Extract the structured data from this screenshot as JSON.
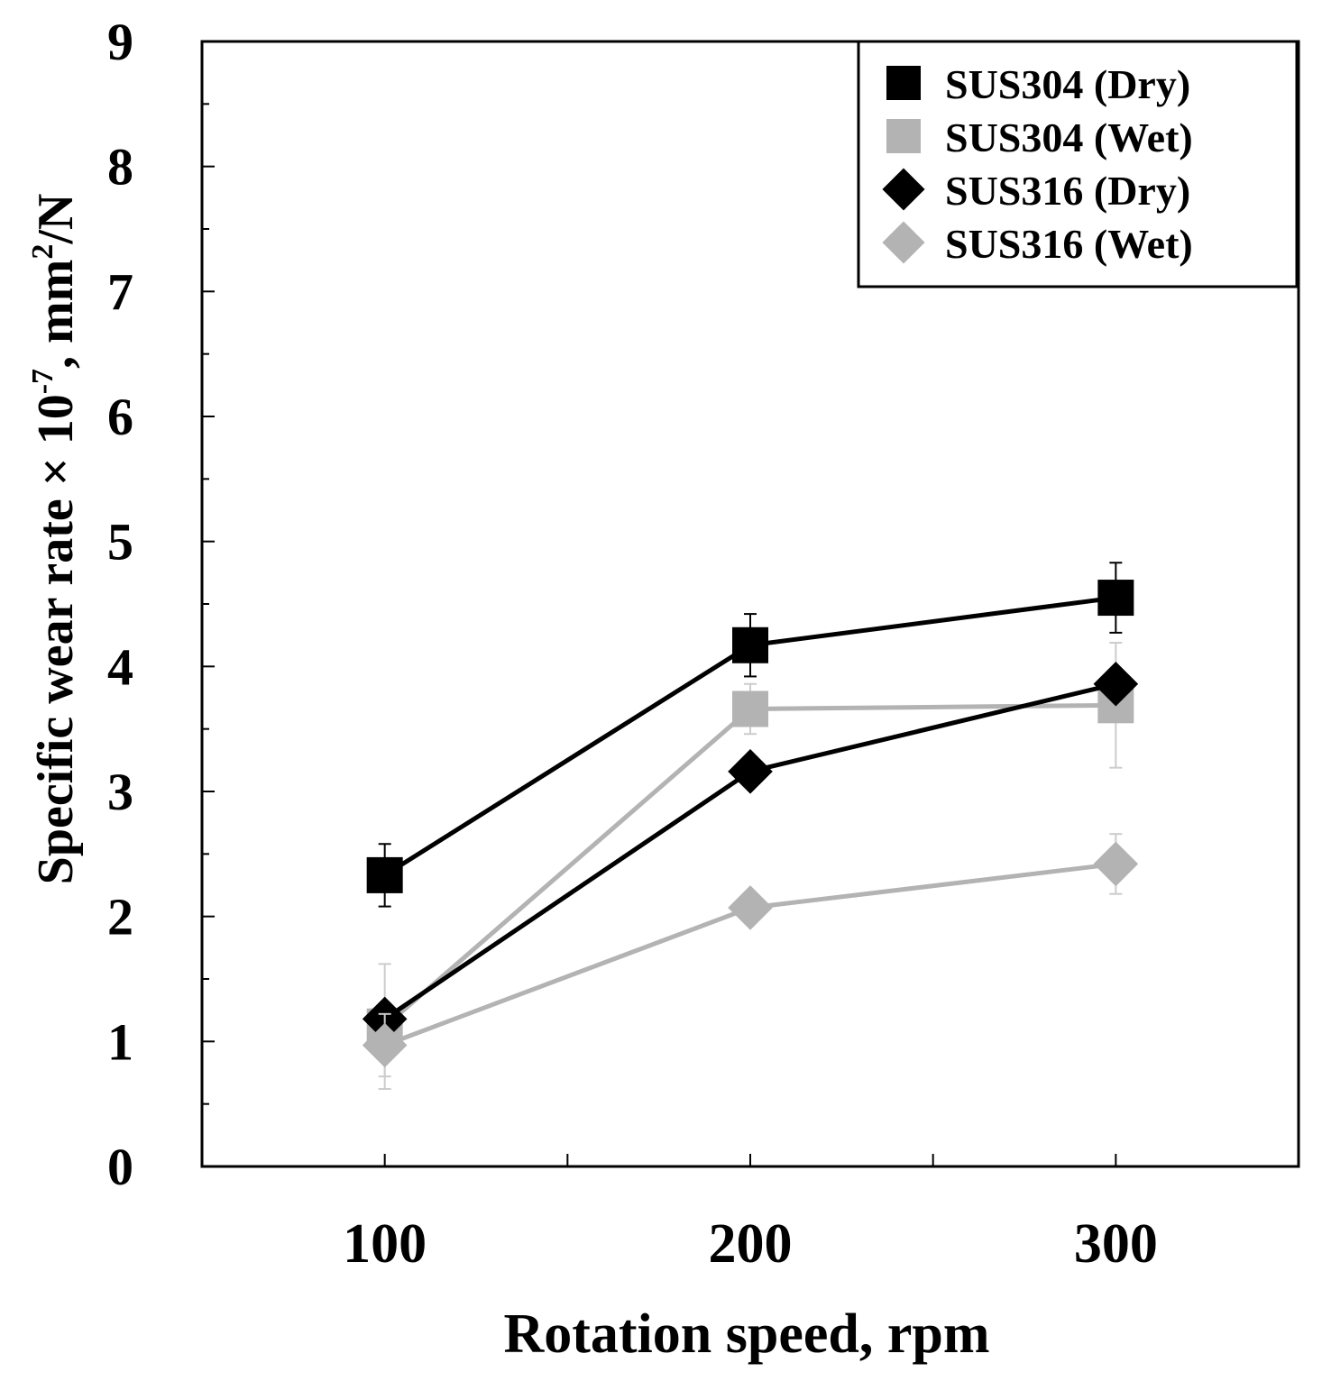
{
  "chart_data": {
    "type": "line",
    "title": "",
    "xlabel": "Rotation speed, rpm",
    "ylabel": {
      "prefix": "Specific wear rate × 10",
      "exponent": "-7",
      "unit_prefix": ", mm",
      "unit_exponent": "2",
      "unit_suffix": "/N"
    },
    "x": [
      100,
      200,
      300
    ],
    "x_tick_labels": [
      "100",
      "200",
      "300"
    ],
    "xlim": [
      50,
      350
    ],
    "ylim": [
      0,
      9
    ],
    "y_ticks": [
      0,
      1,
      2,
      3,
      4,
      5,
      6,
      7,
      8,
      9
    ],
    "y_tick_labels": [
      "0",
      "1",
      "2",
      "3",
      "4",
      "5",
      "6",
      "7",
      "8",
      "9"
    ],
    "grid": false,
    "legend_position": "top-right",
    "series": [
      {
        "name": "SUS304 (Dry)",
        "marker": "square",
        "color": "#000000",
        "values": [
          2.33,
          4.17,
          4.55
        ],
        "errors": [
          0.25,
          0.25,
          0.28
        ]
      },
      {
        "name": "SUS304 (Wet)",
        "marker": "square",
        "color": "#b3b3b3",
        "values": [
          1.12,
          3.66,
          3.69
        ],
        "errors": [
          0.5,
          0.2,
          0.5
        ]
      },
      {
        "name": "SUS316 (Dry)",
        "marker": "diamond",
        "color": "#000000",
        "values": [
          1.18,
          3.16,
          3.86
        ],
        "errors": [
          0,
          0,
          0
        ]
      },
      {
        "name": "SUS316 (Wet)",
        "marker": "diamond",
        "color": "#b3b3b3",
        "values": [
          0.97,
          2.07,
          2.42
        ],
        "errors": [
          0.25,
          0.05,
          0.24
        ]
      }
    ]
  }
}
